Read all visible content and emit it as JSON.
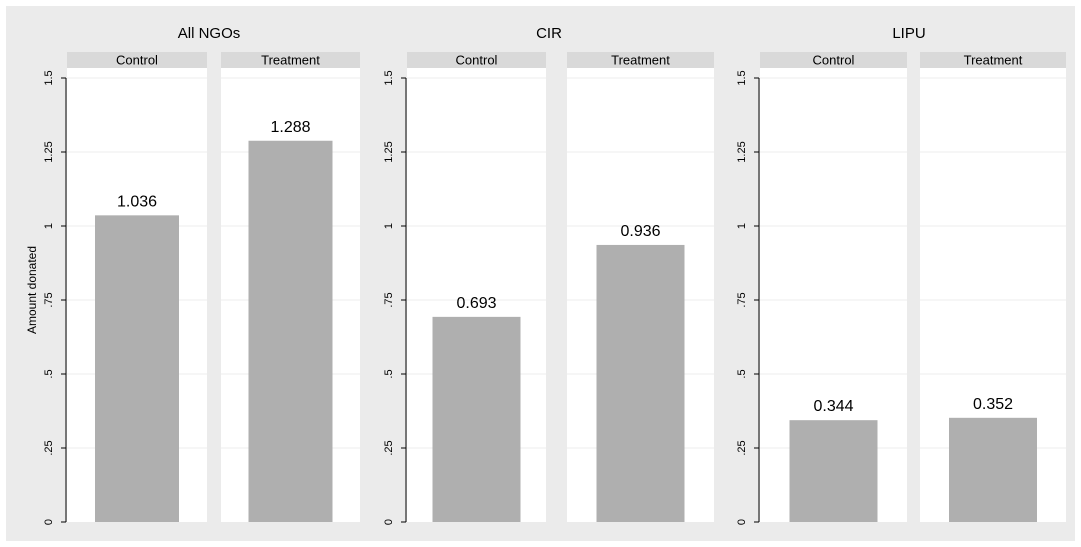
{
  "chart_data": {
    "type": "bar",
    "ylabel": "Amount donated",
    "ylim": [
      0,
      1.5
    ],
    "yticks": [
      0,
      0.25,
      0.5,
      0.75,
      1,
      1.25,
      1.5
    ],
    "ytick_labels": [
      "0",
      ".25",
      ".5",
      ".75",
      "1",
      "1.25",
      "1.5"
    ],
    "grid": true,
    "bar_color": "#afafaf",
    "panels": [
      {
        "title": "All NGOs",
        "groups": [
          {
            "label": "Control",
            "value": 1.036,
            "value_label": "1.036"
          },
          {
            "label": "Treatment",
            "value": 1.288,
            "value_label": "1.288"
          }
        ]
      },
      {
        "title": "CIR",
        "groups": [
          {
            "label": "Control",
            "value": 0.693,
            "value_label": "0.693"
          },
          {
            "label": "Treatment",
            "value": 0.936,
            "value_label": "0.936"
          }
        ]
      },
      {
        "title": "LIPU",
        "groups": [
          {
            "label": "Control",
            "value": 0.344,
            "value_label": "0.344"
          },
          {
            "label": "Treatment",
            "value": 0.352,
            "value_label": "0.352"
          }
        ]
      }
    ]
  }
}
